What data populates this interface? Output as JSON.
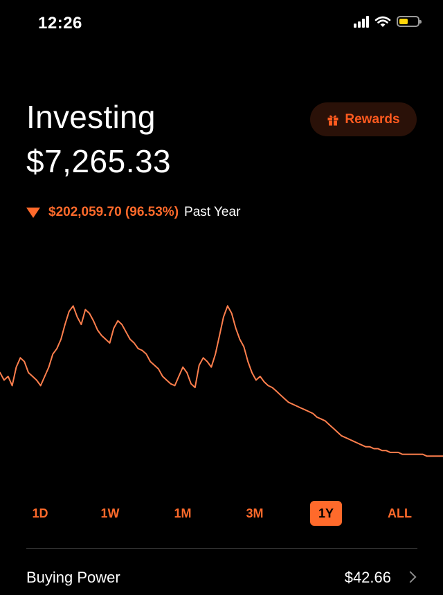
{
  "status_bar": {
    "time": "12:26",
    "signal_icon": "cellular-signal-icon",
    "wifi_icon": "wifi-icon",
    "battery_icon": "battery-low-icon",
    "battery_color": "#ffd60a"
  },
  "header": {
    "title": "Investing",
    "portfolio_value": "$7,265.33",
    "rewards_label": "Rewards",
    "rewards_icon": "gift-icon"
  },
  "performance": {
    "direction_icon": "triangle-down-icon",
    "change": "$202,059.70 (96.53%)",
    "period": "Past Year",
    "accent_color": "#ff6a2b"
  },
  "chart_data": {
    "type": "line",
    "title": "",
    "xlabel": "",
    "ylabel": "",
    "grid": false,
    "legend": "none",
    "ylim": [
      0,
      100
    ],
    "series": [
      {
        "name": "",
        "color": "#ff7f4d",
        "values": [
          52,
          48,
          50,
          45,
          55,
          60,
          58,
          52,
          50,
          48,
          45,
          50,
          55,
          62,
          65,
          70,
          78,
          85,
          88,
          82,
          78,
          86,
          84,
          80,
          75,
          72,
          70,
          68,
          76,
          80,
          78,
          74,
          70,
          68,
          65,
          64,
          62,
          58,
          56,
          54,
          50,
          48,
          46,
          45,
          50,
          55,
          52,
          46,
          44,
          56,
          60,
          58,
          55,
          62,
          72,
          82,
          88,
          84,
          76,
          70,
          66,
          58,
          52,
          48,
          50,
          47,
          45,
          44,
          42,
          40,
          38,
          36,
          35,
          34,
          33,
          32,
          31,
          30,
          28,
          27,
          26,
          24,
          22,
          20,
          18,
          17,
          16,
          15,
          14,
          13,
          12,
          12,
          11,
          11,
          10,
          10,
          9,
          9,
          9,
          8,
          8,
          8,
          8,
          8,
          8,
          7,
          7,
          7,
          7,
          7
        ]
      }
    ]
  },
  "range_tabs": {
    "items": [
      "1D",
      "1W",
      "1M",
      "3M",
      "1Y",
      "ALL"
    ],
    "active": "1Y"
  },
  "buying_power": {
    "label": "Buying Power",
    "value": "$42.66",
    "chevron_icon": "chevron-right-icon"
  }
}
